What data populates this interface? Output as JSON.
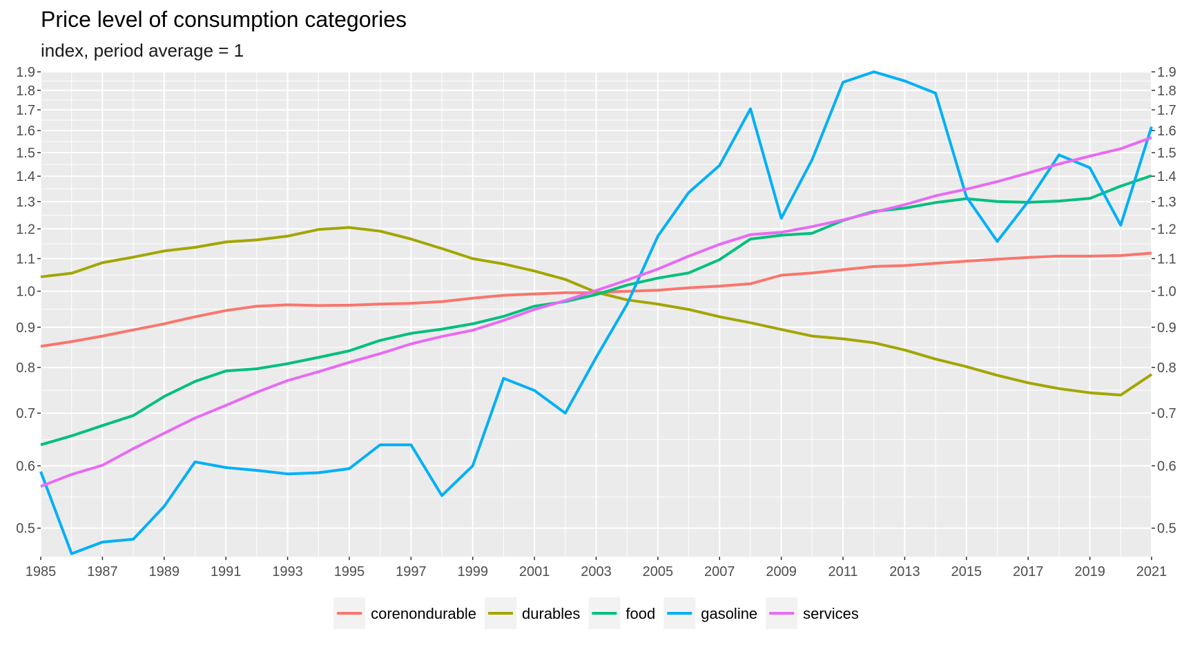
{
  "chart_data": {
    "type": "line",
    "title": "Price level of consumption categories",
    "subtitle": "index, period average = 1",
    "xlabel": "",
    "ylabel": "",
    "y_scale": "log",
    "ylim": [
      0.46,
      1.9
    ],
    "xlim": [
      1985,
      2021
    ],
    "grid": true,
    "legend_position": "bottom",
    "x": [
      1985,
      1986,
      1987,
      1988,
      1989,
      1990,
      1991,
      1992,
      1993,
      1994,
      1995,
      1996,
      1997,
      1998,
      1999,
      2000,
      2001,
      2002,
      2003,
      2004,
      2005,
      2006,
      2007,
      2008,
      2009,
      2010,
      2011,
      2012,
      2013,
      2014,
      2015,
      2016,
      2017,
      2018,
      2019,
      2020,
      2021
    ],
    "x_ticks": [
      1985,
      1987,
      1989,
      1991,
      1993,
      1995,
      1997,
      1999,
      2001,
      2003,
      2005,
      2007,
      2009,
      2011,
      2013,
      2015,
      2017,
      2019,
      2021
    ],
    "y_ticks": [
      0.5,
      0.6,
      0.7,
      0.8,
      0.9,
      1.0,
      1.1,
      1.2,
      1.3,
      1.4,
      1.5,
      1.6,
      1.7,
      1.8,
      1.9
    ],
    "y_tick_labels": [
      "0.5",
      "0.6",
      "0.7",
      "0.8",
      "0.9",
      "1.0",
      "1.1",
      "1.2",
      "1.3",
      "1.4",
      "1.5",
      "1.6",
      "1.7",
      "1.8",
      "1.9"
    ],
    "x_tick_labels": [
      "1985",
      "1987",
      "1989",
      "1991",
      "1993",
      "1995",
      "1997",
      "1999",
      "2001",
      "2003",
      "2005",
      "2007",
      "2009",
      "2011",
      "2013",
      "2015",
      "2017",
      "2019",
      "2021"
    ],
    "series": [
      {
        "name": "corenondurable",
        "color": "#F8766D",
        "values": [
          0.851,
          0.863,
          0.877,
          0.893,
          0.909,
          0.928,
          0.945,
          0.957,
          0.961,
          0.959,
          0.96,
          0.963,
          0.965,
          0.97,
          0.98,
          0.988,
          0.992,
          0.996,
          0.996,
          1.0,
          1.003,
          1.01,
          1.015,
          1.022,
          1.048,
          1.055,
          1.065,
          1.075,
          1.078,
          1.085,
          1.092,
          1.098,
          1.104,
          1.108,
          1.108,
          1.11,
          1.118
        ]
      },
      {
        "name": "durables",
        "color": "#A3A500",
        "values": [
          1.043,
          1.054,
          1.087,
          1.105,
          1.125,
          1.137,
          1.155,
          1.162,
          1.175,
          1.198,
          1.205,
          1.192,
          1.165,
          1.133,
          1.1,
          1.083,
          1.061,
          1.035,
          0.997,
          0.975,
          0.963,
          0.948,
          0.928,
          0.912,
          0.894,
          0.877,
          0.87,
          0.86,
          0.842,
          0.82,
          0.802,
          0.782,
          0.765,
          0.752,
          0.743,
          0.738,
          0.784
        ]
      },
      {
        "name": "food",
        "color": "#00BF7D",
        "values": [
          0.638,
          0.655,
          0.675,
          0.695,
          0.735,
          0.768,
          0.792,
          0.797,
          0.809,
          0.824,
          0.84,
          0.866,
          0.884,
          0.895,
          0.909,
          0.929,
          0.957,
          0.97,
          0.99,
          1.018,
          1.039,
          1.055,
          1.097,
          1.165,
          1.178,
          1.185,
          1.23,
          1.263,
          1.275,
          1.296,
          1.311,
          1.3,
          1.297,
          1.302,
          1.312,
          1.36,
          1.402
        ]
      },
      {
        "name": "gasoline",
        "color": "#00B0F6",
        "values": [
          0.59,
          0.464,
          0.48,
          0.484,
          0.533,
          0.607,
          0.597,
          0.592,
          0.586,
          0.588,
          0.595,
          0.638,
          0.638,
          0.55,
          0.6,
          0.775,
          0.748,
          0.7,
          0.824,
          0.962,
          1.175,
          1.335,
          1.445,
          1.705,
          1.238,
          1.47,
          1.843,
          1.9,
          1.85,
          1.785,
          1.318,
          1.157,
          1.3,
          1.49,
          1.435,
          1.213,
          1.618
        ]
      },
      {
        "name": "services",
        "color": "#E76BF3",
        "values": [
          0.565,
          0.585,
          0.601,
          0.631,
          0.66,
          0.69,
          0.716,
          0.744,
          0.77,
          0.79,
          0.812,
          0.833,
          0.857,
          0.876,
          0.892,
          0.918,
          0.948,
          0.973,
          1.002,
          1.033,
          1.067,
          1.108,
          1.147,
          1.18,
          1.188,
          1.208,
          1.232,
          1.26,
          1.288,
          1.322,
          1.348,
          1.378,
          1.413,
          1.451,
          1.485,
          1.517,
          1.568
        ]
      }
    ]
  }
}
